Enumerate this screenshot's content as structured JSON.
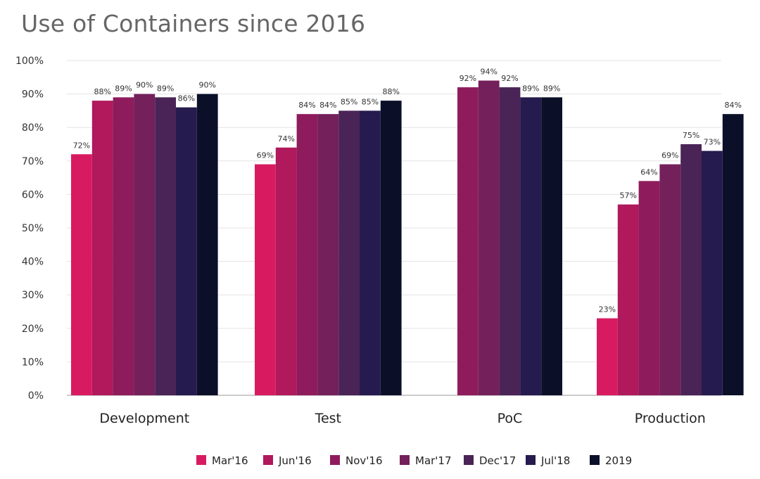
{
  "chart_data": {
    "type": "bar",
    "title": "Use of Containers since 2016",
    "xlabel": "",
    "ylabel": "",
    "ylim": [
      0,
      100
    ],
    "yticks": [
      "0%",
      "10%",
      "20%",
      "30%",
      "40%",
      "50%",
      "60%",
      "70%",
      "80%",
      "90%",
      "100%"
    ],
    "grid": true,
    "legend_position": "bottom",
    "categories": [
      "Development",
      "Test",
      "PoC",
      "Production"
    ],
    "series": [
      {
        "name": "Mar'16",
        "color": "#d81b60",
        "values": [
          72,
          69,
          null,
          23
        ],
        "labels": [
          "72%",
          "69%",
          "",
          "23%"
        ]
      },
      {
        "name": "Jun'16",
        "color": "#b0195c",
        "values": [
          88,
          74,
          null,
          57
        ],
        "labels": [
          "88%",
          "74%",
          "",
          "57%"
        ]
      },
      {
        "name": "Nov'16",
        "color": "#8e1c5c",
        "values": [
          89,
          84,
          92,
          64
        ],
        "labels": [
          "89%",
          "84%",
          "92%",
          "64%"
        ]
      },
      {
        "name": "Mar'17",
        "color": "#74205b",
        "values": [
          90,
          84,
          94,
          69
        ],
        "labels": [
          "90%",
          "84%",
          "94%",
          "69%"
        ]
      },
      {
        "name": "Dec'17",
        "color": "#4a2457",
        "values": [
          89,
          85,
          92,
          75
        ],
        "labels": [
          "89%",
          "85%",
          "92%",
          "75%"
        ]
      },
      {
        "name": "Jul'18",
        "color": "#251b4e",
        "values": [
          86,
          85,
          89,
          73
        ],
        "labels": [
          "86%",
          "85%",
          "89%",
          "73%"
        ]
      },
      {
        "name": "2019",
        "color": "#0b1028",
        "values": [
          90,
          88,
          89,
          84
        ],
        "labels": [
          "90%",
          "88%",
          "89%",
          "84%"
        ]
      }
    ]
  }
}
